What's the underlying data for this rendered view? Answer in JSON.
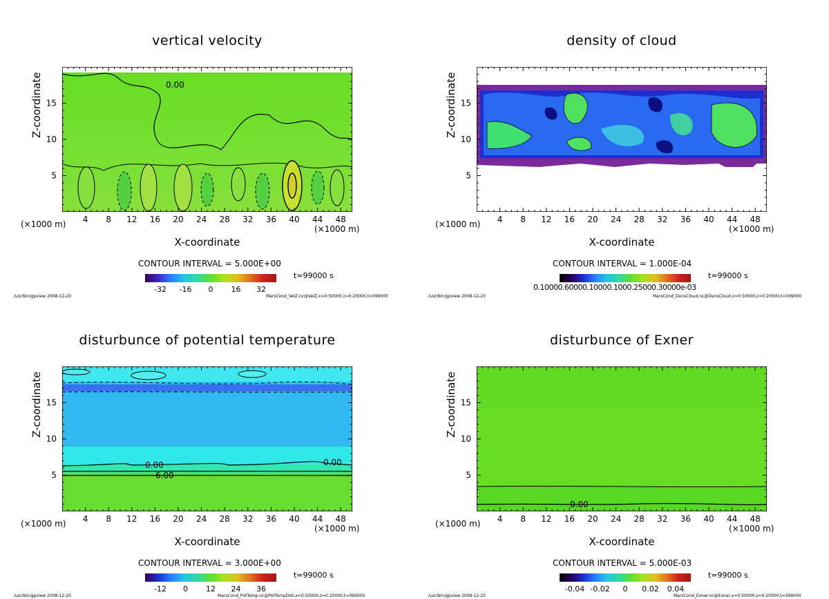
{
  "chart_data": [
    {
      "type": "heatmap",
      "title": "vertical velocity",
      "xlabel": "X-coordinate",
      "ylabel": "Z-coordinate",
      "x_unit_left": "(×1000 m)",
      "x_unit_right": "(×1000 m)",
      "xticks": [
        "4",
        "8",
        "12",
        "16",
        "20",
        "24",
        "28",
        "32",
        "36",
        "40",
        "44",
        "48"
      ],
      "yticks": [
        "5",
        "10",
        "15"
      ],
      "xlim": [
        0,
        50
      ],
      "ylim": [
        0,
        20
      ],
      "contour_label": "0.00",
      "contour_interval": "CONTOUR INTERVAL = 5.000E+00",
      "time": "t=99000 s",
      "colorbar_ticks": [
        "-32",
        "-16",
        "0",
        "16",
        "32"
      ],
      "footer_left": "/usr/bin/gpview  2008-12-20",
      "footer_right": "MarsCond_VelZ.nc@VelZ,x=0:50000,z=0:20000,t=099000"
    },
    {
      "type": "heatmap",
      "title": "density of cloud",
      "xlabel": "X-coordinate",
      "ylabel": "Z-coordinate",
      "x_unit_left": "(×1000 m)",
      "x_unit_right": "(×1000 m)",
      "xticks": [
        "4",
        "8",
        "12",
        "16",
        "20",
        "24",
        "28",
        "32",
        "36",
        "40",
        "44",
        "48"
      ],
      "yticks": [
        "5",
        "10",
        "15"
      ],
      "xlim": [
        0,
        50
      ],
      "ylim": [
        0,
        20
      ],
      "contour_interval": "CONTOUR INTERVAL = 1.000E-04",
      "time": "t=99000 s",
      "colorbar_ticks": [
        "0.10000.60000.10000.1000.25000.30000e-03"
      ],
      "footer_left": "/usr/bin/gpview  2008-12-20",
      "footer_right": "MarsCond_DensCloud.nc@DensCloud,x=0:50000,z=0:20000,t=099000"
    },
    {
      "type": "heatmap",
      "title": "disturbunce of potential temperature",
      "xlabel": "X-coordinate",
      "ylabel": "Z-coordinate",
      "x_unit_left": "(×1000 m)",
      "x_unit_right": "(×1000 m)",
      "xticks": [
        "4",
        "8",
        "12",
        "16",
        "20",
        "24",
        "28",
        "32",
        "36",
        "40",
        "44",
        "48"
      ],
      "yticks": [
        "5",
        "10",
        "15"
      ],
      "xlim": [
        0,
        50
      ],
      "ylim": [
        0,
        20
      ],
      "contour_labels": [
        "0.00",
        "6.00",
        "0.00"
      ],
      "contour_interval": "CONTOUR INTERVAL = 3.000E+00",
      "time": "t=99000 s",
      "colorbar_ticks": [
        "-12",
        "0",
        "12",
        "24",
        "36"
      ],
      "footer_left": "/usr/bin/gpview  2008-12-20",
      "footer_right": "MarsCond_PotTemp.nc@PotTempDist,x=0:50000,z=0:20000,t=099000"
    },
    {
      "type": "heatmap",
      "title": "disturbunce of Exner",
      "xlabel": "X-coordinate",
      "ylabel": "Z-coordinate",
      "x_unit_left": "(×1000 m)",
      "x_unit_right": "(×1000 m)",
      "xticks": [
        "4",
        "8",
        "12",
        "16",
        "20",
        "24",
        "28",
        "32",
        "36",
        "40",
        "44",
        "48"
      ],
      "yticks": [
        "5",
        "10",
        "15"
      ],
      "xlim": [
        0,
        50
      ],
      "ylim": [
        0,
        20
      ],
      "contour_label": "0.00",
      "contour_interval": "CONTOUR INTERVAL = 5.000E-03",
      "time": "t=99000 s",
      "colorbar_ticks": [
        "-0.04",
        "-0.02",
        "0",
        "0.02",
        "0.04"
      ],
      "footer_left": "/usr/bin/gpview  2008-12-20",
      "footer_right": "MarsCond_Exner.nc@Exner,x=0:50000,z=0:20000,t=099000"
    }
  ]
}
